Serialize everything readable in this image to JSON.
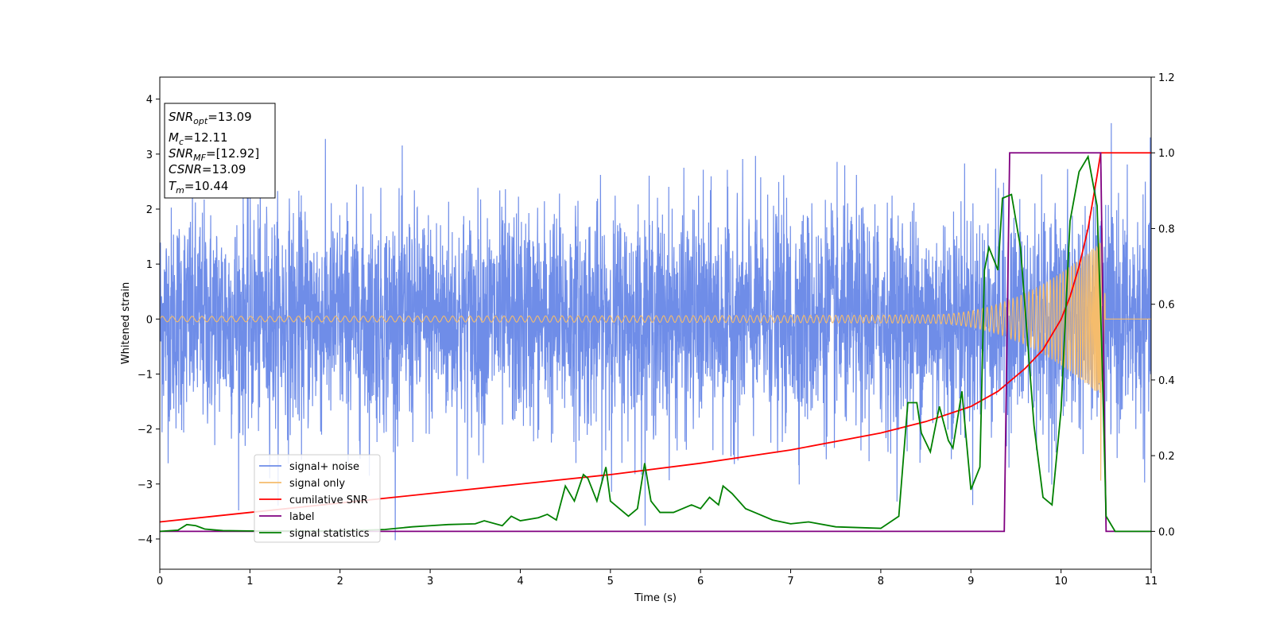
{
  "chart_data": {
    "type": "line",
    "xlabel": "Time (s)",
    "ylabel_left": "Whitened strain",
    "ylabel_right": "",
    "xlim": [
      0,
      11
    ],
    "ylim_left": [
      -4.55,
      4.4
    ],
    "ylim_right": [
      -0.1,
      1.2
    ],
    "x_ticks": [
      0,
      1,
      2,
      3,
      4,
      5,
      6,
      7,
      8,
      9,
      10,
      11
    ],
    "y_ticks_left": [
      -4,
      -3,
      -2,
      -1,
      0,
      1,
      2,
      3,
      4
    ],
    "y_ticks_right": [
      0.0,
      0.2,
      0.4,
      0.6,
      0.8,
      1.0,
      1.2
    ],
    "grid": false,
    "legend_position": "lower-left",
    "legend": [
      "signal+ noise",
      "signal only",
      "cumilative SNR",
      "label",
      "signal statistics"
    ],
    "colors": {
      "noise": "#6f8de8",
      "signal": "#f5bc6c",
      "cumsnr": "#ff0000",
      "label": "#800080",
      "stats": "#008000"
    },
    "info_box": {
      "snr_opt": "=13.09",
      "mc": "=12.11",
      "snr_mf": "=[12.92]",
      "csnr": "=13.09",
      "tm": "=10.44"
    },
    "series": [
      {
        "name": "signal+ noise",
        "axis": "left",
        "description_type": "noise",
        "sigma": 1.0,
        "t_start": 0,
        "t_end": 11
      },
      {
        "name": "signal only",
        "axis": "left",
        "description_type": "chirp",
        "t_merger": 10.44,
        "amplitude_start": 0.05,
        "amplitude_peak": 1.4,
        "t_end": 11
      },
      {
        "name": "cumilative SNR",
        "axis": "right",
        "x": [
          0,
          1,
          2,
          3,
          4,
          5,
          6,
          7,
          8,
          8.5,
          9,
          9.3,
          9.6,
          9.8,
          10.0,
          10.1,
          10.2,
          10.3,
          10.35,
          10.4,
          10.44,
          11
        ],
        "y": [
          0.025,
          0.05,
          0.075,
          0.1,
          0.125,
          0.15,
          0.18,
          0.215,
          0.26,
          0.29,
          0.33,
          0.37,
          0.43,
          0.48,
          0.56,
          0.62,
          0.7,
          0.8,
          0.87,
          0.94,
          1.0,
          1.0
        ]
      },
      {
        "name": "label",
        "axis": "right",
        "x": [
          0,
          9.37,
          9.43,
          10.44,
          10.5,
          11
        ],
        "y": [
          0,
          0,
          1,
          1,
          0,
          0
        ]
      },
      {
        "name": "signal statistics",
        "axis": "right",
        "x": [
          0,
          0.2,
          0.3,
          0.4,
          0.5,
          0.7,
          1.0,
          2.0,
          2.5,
          2.8,
          3.0,
          3.2,
          3.5,
          3.6,
          3.8,
          3.9,
          4.0,
          4.2,
          4.3,
          4.4,
          4.5,
          4.6,
          4.7,
          4.75,
          4.85,
          4.95,
          5.0,
          5.1,
          5.2,
          5.3,
          5.38,
          5.45,
          5.55,
          5.7,
          5.8,
          5.9,
          6.0,
          6.1,
          6.2,
          6.25,
          6.35,
          6.5,
          6.6,
          6.8,
          7.0,
          7.2,
          7.5,
          8.0,
          8.2,
          8.3,
          8.4,
          8.45,
          8.55,
          8.65,
          8.75,
          8.8,
          8.9,
          9.0,
          9.1,
          9.15,
          9.2,
          9.3,
          9.35,
          9.45,
          9.55,
          9.7,
          9.8,
          9.9,
          10.0,
          10.1,
          10.2,
          10.3,
          10.4,
          10.45,
          10.5,
          10.6,
          11
        ],
        "y": [
          0.0,
          0.003,
          0.018,
          0.015,
          0.006,
          0.002,
          0.001,
          0.001,
          0.005,
          0.012,
          0.015,
          0.018,
          0.02,
          0.028,
          0.015,
          0.04,
          0.028,
          0.036,
          0.045,
          0.03,
          0.12,
          0.08,
          0.15,
          0.14,
          0.08,
          0.17,
          0.08,
          0.06,
          0.04,
          0.06,
          0.18,
          0.08,
          0.05,
          0.05,
          0.06,
          0.07,
          0.06,
          0.09,
          0.07,
          0.12,
          0.1,
          0.06,
          0.05,
          0.03,
          0.02,
          0.025,
          0.012,
          0.008,
          0.04,
          0.34,
          0.34,
          0.26,
          0.21,
          0.33,
          0.24,
          0.22,
          0.37,
          0.11,
          0.17,
          0.69,
          0.75,
          0.69,
          0.88,
          0.89,
          0.75,
          0.28,
          0.09,
          0.07,
          0.32,
          0.82,
          0.95,
          0.99,
          0.86,
          0.5,
          0.04,
          0.0,
          0.0
        ]
      }
    ]
  }
}
